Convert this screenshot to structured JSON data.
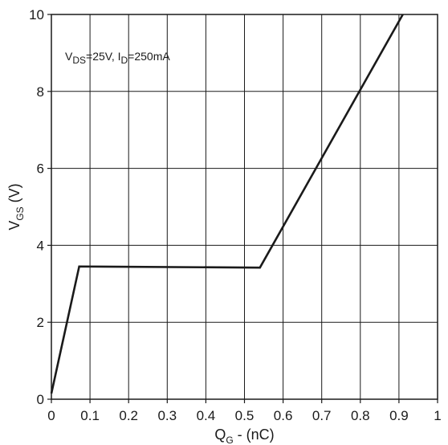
{
  "chart_data": {
    "type": "line",
    "title": "",
    "xlabel": {
      "main": "Q",
      "sub": "G",
      "rest": " - (nC)"
    },
    "ylabel": {
      "main": "V",
      "sub": "GS",
      "rest": " (V)"
    },
    "xlim": [
      0,
      1
    ],
    "ylim": [
      0,
      10
    ],
    "x_ticks": [
      0,
      0.1,
      0.2,
      0.3,
      0.4,
      0.5,
      0.6,
      0.7,
      0.8,
      0.9,
      1
    ],
    "x_tick_labels": [
      "0",
      "0.1",
      "0.2",
      "0.3",
      "0.4",
      "0.5",
      "0.6",
      "0.7",
      "0.8",
      "0.9",
      "1"
    ],
    "y_ticks": [
      0,
      2,
      4,
      6,
      8,
      10
    ],
    "y_tick_labels": [
      "0",
      "2",
      "4",
      "6",
      "8",
      "10"
    ],
    "grid": true,
    "annotation": {
      "parts": [
        {
          "text": "V",
          "sub": false
        },
        {
          "text": "DS",
          "sub": true
        },
        {
          "text": "=25V, I",
          "sub": false
        },
        {
          "text": "D",
          "sub": true
        },
        {
          "text": "=250mA",
          "sub": false
        }
      ],
      "placement": "top-left"
    },
    "series": [
      {
        "x": [
          0.0,
          0.072,
          0.54,
          0.91
        ],
        "y": [
          0.15,
          3.45,
          3.42,
          10.0
        ]
      }
    ],
    "colors": {
      "line": "#1a1a1a",
      "grid": "#1a1a1a",
      "frame": "#1a1a1a"
    }
  }
}
